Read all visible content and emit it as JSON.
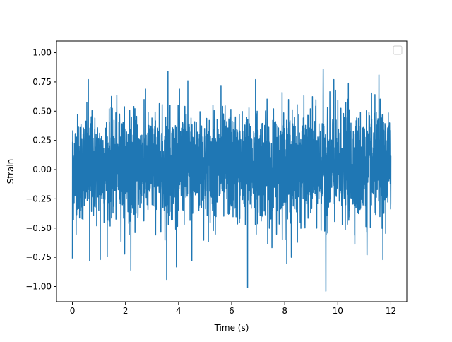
{
  "chart_data": {
    "type": "line",
    "title": "",
    "xlabel": "Time (s)",
    "ylabel": "Strain",
    "xlim": [
      -0.6,
      12.6
    ],
    "ylim": [
      -1.13,
      1.1
    ],
    "x_ticks": [
      0,
      2,
      4,
      6,
      8,
      10,
      12
    ],
    "x_tick_labels": [
      "0",
      "2",
      "4",
      "6",
      "8",
      "10",
      "12"
    ],
    "y_ticks": [
      -1.0,
      -0.75,
      -0.5,
      -0.25,
      0.0,
      0.25,
      0.5,
      0.75,
      1.0
    ],
    "y_tick_labels": [
      "−1.00",
      "−0.75",
      "−0.50",
      "−0.25",
      "0.00",
      "0.25",
      "0.50",
      "0.75",
      "1.00"
    ],
    "grid": false,
    "legend": {
      "placement": "top-right",
      "entries": []
    },
    "series": [
      {
        "color": "#1f77b4",
        "x_range": [
          0,
          12
        ],
        "summary": {
          "min": -1.04,
          "max": 0.86,
          "typical_band": [
            -0.5,
            0.55
          ]
        },
        "notable_peaks": [
          [
            0.0,
            0.73
          ],
          [
            0.0,
            -0.76
          ],
          [
            0.6,
            0.77
          ],
          [
            0.65,
            -0.78
          ],
          [
            1.05,
            0.66
          ],
          [
            1.05,
            -0.77
          ],
          [
            2.2,
            -0.86
          ],
          [
            2.7,
            0.6
          ],
          [
            3.6,
            0.84
          ],
          [
            3.55,
            -0.94
          ],
          [
            4.35,
            0.76
          ],
          [
            4.5,
            -0.78
          ],
          [
            5.6,
            0.72
          ],
          [
            6.6,
            -1.01
          ],
          [
            6.9,
            0.77
          ],
          [
            7.9,
            0.66
          ],
          [
            8.25,
            -0.75
          ],
          [
            9.45,
            0.86
          ],
          [
            9.55,
            -1.04
          ],
          [
            9.85,
            0.77
          ],
          [
            10.4,
            0.74
          ],
          [
            11.1,
            -0.73
          ],
          [
            11.55,
            0.81
          ],
          [
            11.7,
            -0.77
          ]
        ]
      }
    ]
  }
}
